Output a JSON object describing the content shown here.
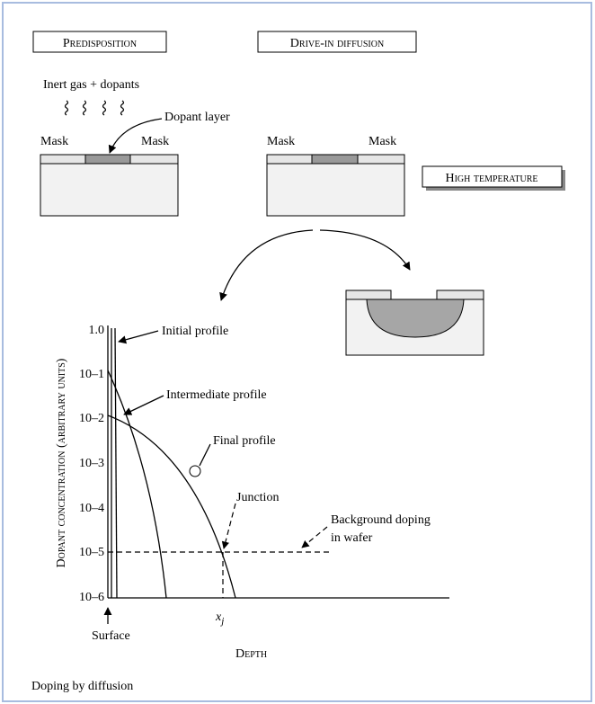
{
  "stages": {
    "predisposition": "Predisposition",
    "drive_in": "Drive-in diffusion",
    "high_temperature": "High temperature"
  },
  "labels": {
    "gas": "Inert gas + dopants",
    "dopant_layer": "Dopant layer",
    "mask_1": "Mask",
    "mask_2": "Mask",
    "mask_3": "Mask",
    "mask_4": "Mask"
  },
  "plot": {
    "y_label": "Dopant concentration (arbitrary units)",
    "x_label": "Depth",
    "y_ticks": [
      "1.0",
      "10–1",
      "10–2",
      "10–3",
      "10–4",
      "10–5",
      "10–6"
    ],
    "x_tick": "x",
    "x_tick_sub": "j",
    "surface": "Surface",
    "annotations": {
      "initial": "Initial profile",
      "intermediate": "Intermediate profile",
      "final": "Final profile",
      "junction": "Junction",
      "background_1": "Background doping",
      "background_2": "in wafer"
    }
  },
  "caption": "Doping by diffusion"
}
